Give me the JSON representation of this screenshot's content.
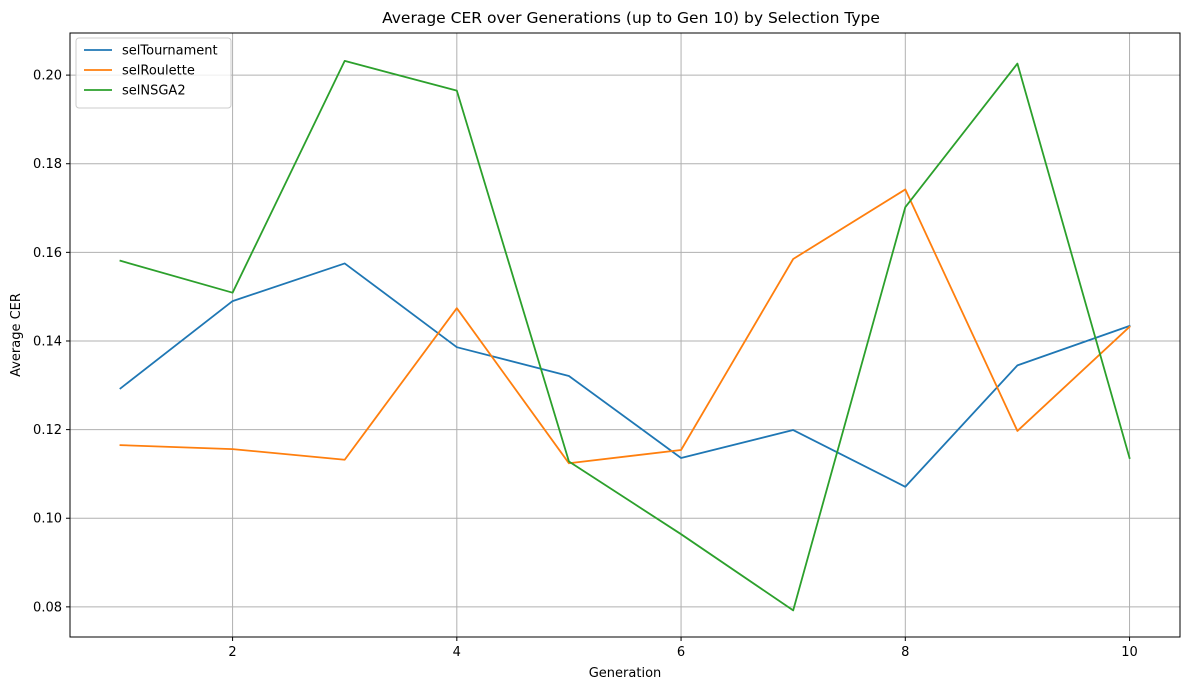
{
  "chart_data": {
    "type": "line",
    "title": "Average CER over Generations (up to Gen 10) by Selection Type",
    "xlabel": "Generation",
    "ylabel": "Average CER",
    "x": [
      1,
      2,
      3,
      4,
      5,
      6,
      7,
      8,
      9,
      10
    ],
    "xlim": [
      0.55,
      10.45
    ],
    "ylim": [
      0.0732,
      0.2095
    ],
    "xticks": [
      2,
      4,
      6,
      8,
      10
    ],
    "xtick_labels": [
      "2",
      "4",
      "6",
      "8",
      "10"
    ],
    "yticks": [
      0.08,
      0.1,
      0.12,
      0.14,
      0.16,
      0.18,
      0.2
    ],
    "ytick_labels": [
      "0.08",
      "0.10",
      "0.12",
      "0.14",
      "0.16",
      "0.18",
      "0.20"
    ],
    "grid": true,
    "legend_position": "top-left",
    "series": [
      {
        "name": "selTournament",
        "color": "#1f77b4",
        "values": [
          0.1293,
          0.149,
          0.1575,
          0.1386,
          0.1321,
          0.1136,
          0.1199,
          0.1071,
          0.1345,
          0.1434
        ]
      },
      {
        "name": "selRoulette",
        "color": "#ff7f0e",
        "values": [
          0.1165,
          0.1156,
          0.1132,
          0.1474,
          0.1124,
          0.1154,
          0.1585,
          0.1742,
          0.1197,
          0.1432
        ]
      },
      {
        "name": "selNSGA2",
        "color": "#2ca02c",
        "values": [
          0.1581,
          0.1509,
          0.2032,
          0.1965,
          0.1128,
          0.0964,
          0.0792,
          0.1702,
          0.2026,
          0.1136
        ]
      }
    ]
  }
}
